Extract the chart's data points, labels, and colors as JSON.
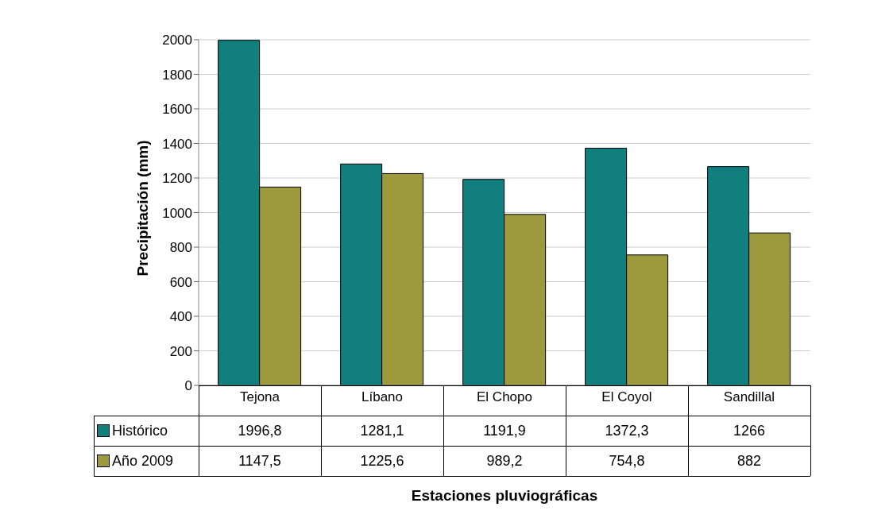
{
  "chart_data": {
    "type": "bar",
    "ylabel": "Precipitación (mm)",
    "annotations": [
      "Estaciones pluviográficas"
    ],
    "categories": [
      "Tejona",
      "Líbano",
      "El Chopo",
      "El Coyol",
      "Sandillal"
    ],
    "series": [
      {
        "name": "Histórico",
        "color": "#127f7f",
        "values": [
          1996.8,
          1281.1,
          1191.9,
          1372.3,
          1266
        ],
        "value_labels": [
          "1996,8",
          "1281,1",
          "1191,9",
          "1372,3",
          "1266"
        ]
      },
      {
        "name": "Año 2009",
        "color": "#9c9a3c",
        "values": [
          1147.5,
          1225.6,
          989.2,
          754.8,
          882
        ],
        "value_labels": [
          "1147,5",
          "1225,6",
          "989,2",
          "754,8",
          "882"
        ]
      }
    ],
    "ylim": [
      0,
      2000
    ],
    "yticks": [
      0,
      200,
      400,
      600,
      800,
      1000,
      1200,
      1400,
      1600,
      1800,
      2000
    ],
    "grid": "y",
    "legend": "bottom"
  }
}
